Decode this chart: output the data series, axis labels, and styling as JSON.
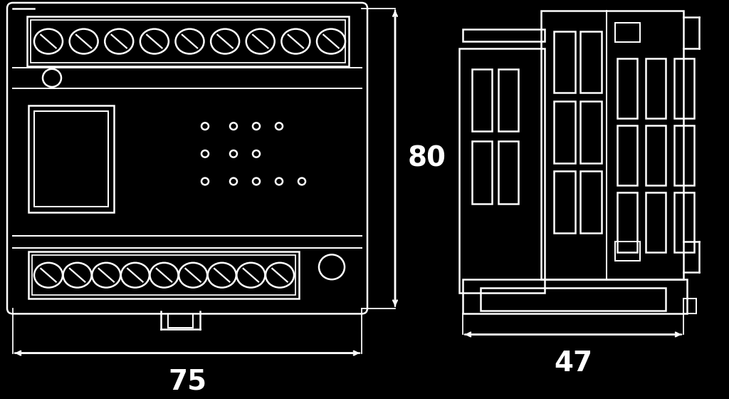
{
  "bg_color": "#000000",
  "line_color": "#ffffff",
  "lw": 1.8,
  "fig_w": 10.24,
  "fig_h": 5.6,
  "label_80": "80",
  "label_75": "75",
  "label_47": "47",
  "font_size_dim": 28
}
